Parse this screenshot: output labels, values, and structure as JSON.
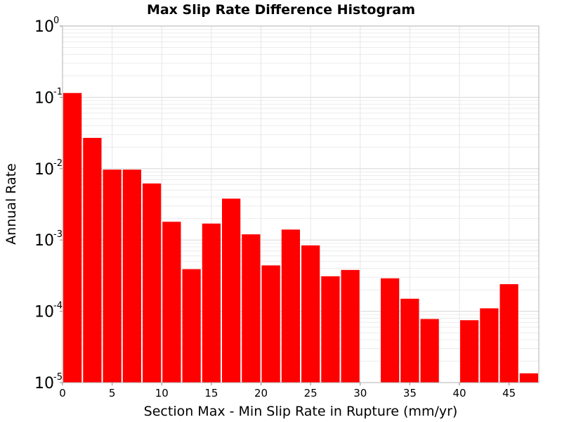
{
  "chart_data": {
    "type": "bar",
    "title": "Max Slip Rate Difference Histogram",
    "xlabel": "Section Max - Min Slip Rate in Rupture (mm/yr)",
    "ylabel": "Annual Rate",
    "xlim": [
      0,
      48
    ],
    "ylim": [
      1e-05,
      1
    ],
    "yscale": "log",
    "bar_width": 2,
    "bar_color": "#ff0000",
    "grid": true,
    "x_ticks": [
      0,
      5,
      10,
      15,
      20,
      25,
      30,
      35,
      40,
      45
    ],
    "y_ticks": [
      {
        "base": "10",
        "exp": "-5",
        "value": 1e-05
      },
      {
        "base": "10",
        "exp": "-4",
        "value": 0.0001
      },
      {
        "base": "10",
        "exp": "-3",
        "value": 0.001
      },
      {
        "base": "10",
        "exp": "-2",
        "value": 0.01
      },
      {
        "base": "10",
        "exp": "-1",
        "value": 0.1
      },
      {
        "base": "10",
        "exp": "0",
        "value": 1
      }
    ],
    "x": [
      1,
      3,
      5,
      7,
      9,
      11,
      13,
      15,
      17,
      19,
      21,
      23,
      25,
      27,
      29,
      31,
      33,
      35,
      37,
      39,
      41,
      43,
      45,
      47
    ],
    "values": [
      0.115,
      0.027,
      0.0097,
      0.0097,
      0.0062,
      0.0018,
      0.00039,
      0.0017,
      0.0038,
      0.0012,
      0.00044,
      0.0014,
      0.00084,
      0.00031,
      0.00038,
      null,
      0.00029,
      0.00015,
      7.8e-05,
      null,
      7.5e-05,
      0.00011,
      0.00024,
      1.35e-05
    ]
  }
}
